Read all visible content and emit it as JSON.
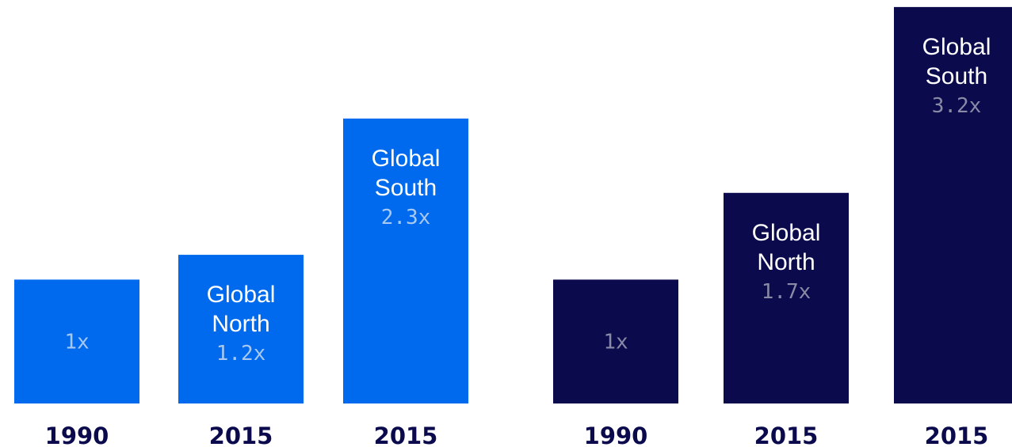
{
  "chart_data": [
    {
      "type": "bar",
      "categories": [
        "1990",
        "2015",
        "2015"
      ],
      "values": [
        1,
        1.2,
        2.3
      ],
      "bar_labels": [
        {
          "name": [],
          "value": "1x"
        },
        {
          "name": [
            "Global",
            "North"
          ],
          "value": "1.2x"
        },
        {
          "name": [
            "Global",
            "South"
          ],
          "value": "2.3x"
        }
      ],
      "colors": {
        "bar": "#006aee",
        "value_text": "#a6c8f3",
        "axis_label": "#0a0a4d"
      }
    },
    {
      "type": "bar",
      "categories": [
        "1990",
        "2015",
        "2015"
      ],
      "values": [
        1,
        1.7,
        3.2
      ],
      "bar_labels": [
        {
          "name": [],
          "value": "1x"
        },
        {
          "name": [
            "Global",
            "North"
          ],
          "value": "1.7x"
        },
        {
          "name": [
            "Global",
            "South"
          ],
          "value": "3.2x"
        }
      ],
      "colors": {
        "bar": "#0a0a4d",
        "value_text": "#8a8aa6",
        "axis_label": "#0a0a4d"
      }
    }
  ]
}
